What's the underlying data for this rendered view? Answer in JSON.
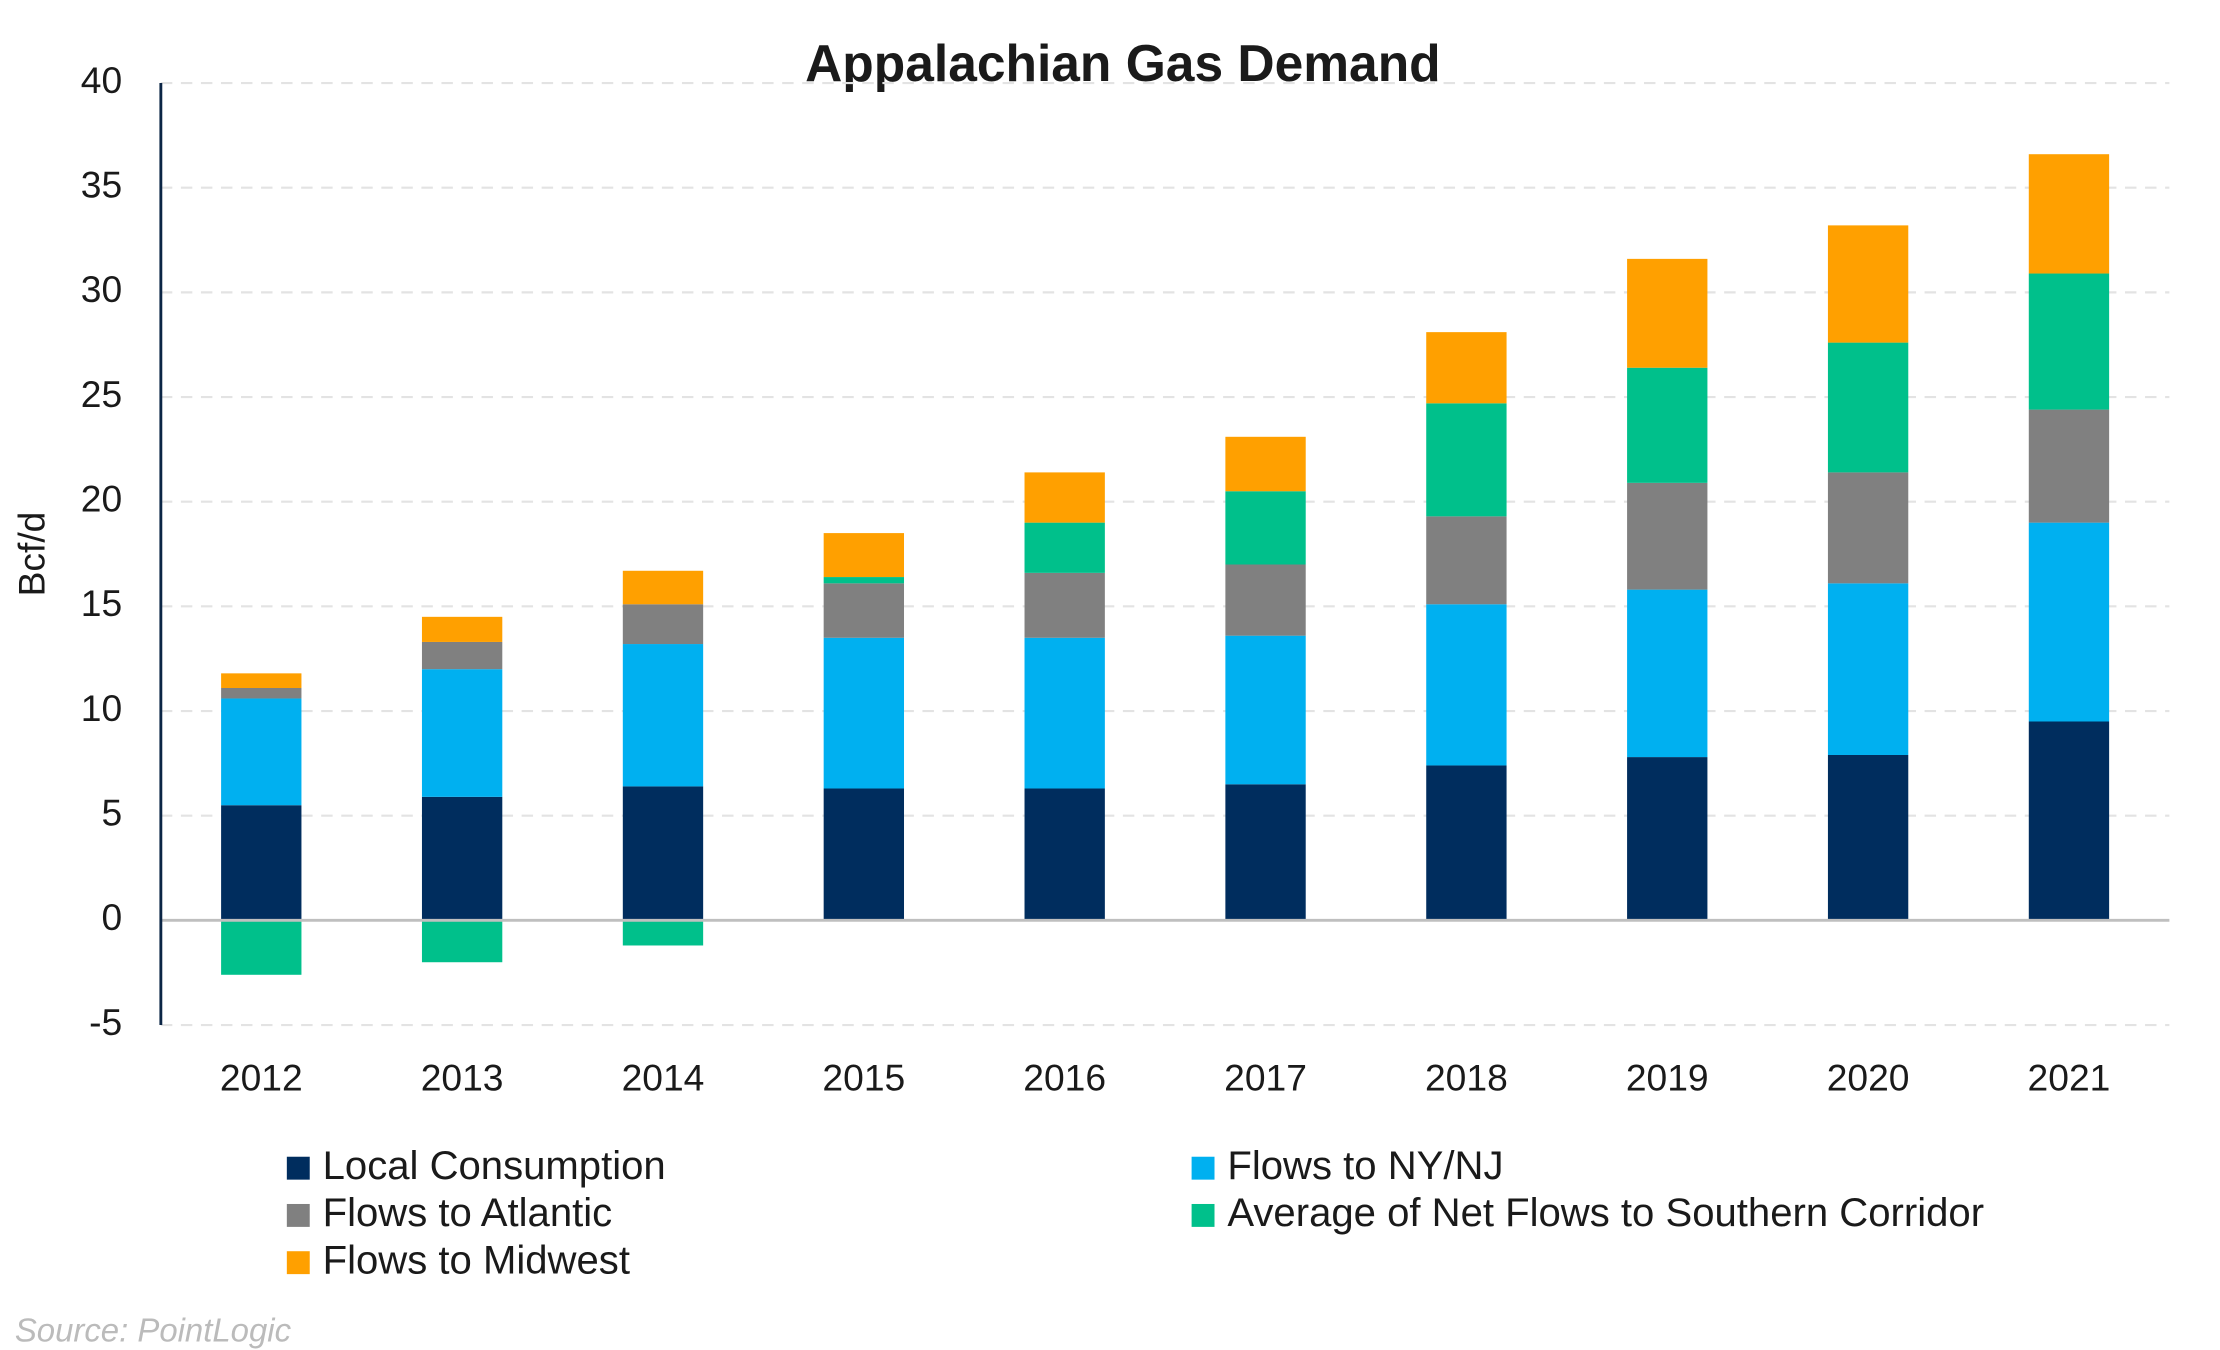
{
  "chart_data": {
    "type": "stacked_bar",
    "title": "Appalachian Gas Demand",
    "y_label": "Bcf/d",
    "categories": [
      "2012",
      "2013",
      "2014",
      "2015",
      "2016",
      "2017",
      "2018",
      "2019",
      "2020",
      "2021"
    ],
    "series": [
      {
        "name": "Local Consumption",
        "color": "#002d5e",
        "values": [
          5.5,
          5.9,
          6.4,
          6.3,
          6.3,
          6.5,
          7.4,
          7.8,
          7.9,
          9.5
        ]
      },
      {
        "name": "Flows to NY/NJ",
        "color": "#00b0f0",
        "values": [
          5.1,
          6.1,
          6.8,
          7.2,
          7.2,
          7.1,
          7.7,
          8.0,
          8.2,
          9.5
        ]
      },
      {
        "name": "Flows to Atlantic",
        "color": "#808080",
        "values": [
          0.5,
          1.3,
          1.9,
          2.6,
          3.1,
          3.4,
          4.2,
          5.1,
          5.3,
          5.4
        ]
      },
      {
        "name": "Average of Net Flows to Southern Corridor",
        "color": "#00c08b",
        "values": [
          -2.6,
          -2.0,
          -1.2,
          0.3,
          2.4,
          3.5,
          5.4,
          5.5,
          6.2,
          6.5
        ]
      },
      {
        "name": "Flows to Midwest",
        "color": "#ffa000",
        "values": [
          0.7,
          1.2,
          1.6,
          2.1,
          2.4,
          2.6,
          3.4,
          5.2,
          5.6,
          5.7
        ]
      }
    ],
    "ylim": [
      -5,
      40
    ],
    "yticks": [
      -5,
      0,
      5,
      10,
      15,
      20,
      25,
      30,
      35,
      40
    ],
    "grid": true,
    "source": "Source: PointLogic"
  }
}
